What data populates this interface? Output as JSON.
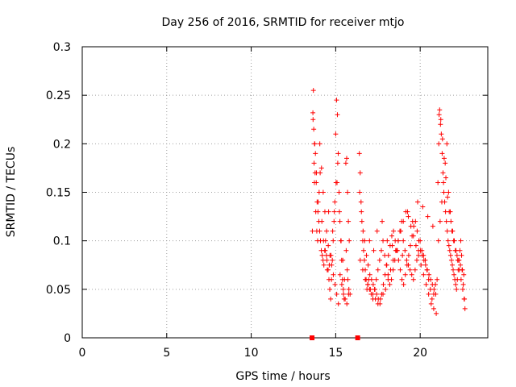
{
  "chart_data": {
    "type": "scatter",
    "title": "Day 256 of 2016, SRMTID for receiver mtjo",
    "xlabel": "GPS time / hours",
    "ylabel": "SRMTID / TECUs",
    "xlim": [
      0,
      24
    ],
    "ylim": [
      0,
      0.3
    ],
    "xticks": [
      0,
      5,
      10,
      15,
      20
    ],
    "xtick_labels": [
      "0",
      "5",
      "10",
      "15",
      "20"
    ],
    "yticks": [
      0,
      0.05,
      0.1,
      0.15,
      0.2,
      0.25,
      0.3
    ],
    "ytick_labels": [
      "0",
      "0.05",
      "0.1",
      "0.15",
      "0.2",
      "0.25",
      "0.3"
    ],
    "grid": true,
    "marker": "+",
    "color": "#ff0000",
    "zero_markers": [
      13.6,
      16.3
    ],
    "series": [
      {
        "name": "SRMTID",
        "x": [
          13.65,
          13.7,
          13.72,
          13.75,
          13.78,
          13.8,
          13.85,
          13.9,
          13.95,
          14.0,
          14.05,
          14.1,
          14.15,
          14.2,
          14.25,
          14.3,
          14.35,
          14.4,
          14.45,
          14.5,
          13.62,
          13.68,
          13.74,
          13.82,
          13.88,
          13.93,
          14.02,
          14.08,
          14.18,
          14.28,
          14.38,
          14.48,
          14.55,
          14.6,
          14.65,
          14.7,
          14.75,
          14.8,
          14.85,
          14.9,
          14.95,
          15.0,
          15.05,
          15.1,
          15.15,
          15.2,
          15.25,
          15.3,
          15.35,
          15.4,
          15.45,
          15.5,
          14.62,
          14.72,
          14.82,
          14.92,
          15.02,
          15.12,
          15.22,
          15.32,
          15.42,
          15.52,
          15.6,
          15.65,
          15.7,
          15.75,
          15.8,
          15.62,
          15.68,
          15.72,
          15.78,
          15.85,
          13.66,
          13.76,
          13.86,
          13.96,
          14.06,
          14.16,
          14.26,
          14.36,
          14.46,
          14.56,
          14.66,
          14.76,
          14.86,
          14.96,
          15.06,
          15.16,
          15.26,
          15.36,
          15.46,
          15.56,
          15.66,
          15.76,
          14.58,
          15.08,
          16.4,
          16.45,
          16.5,
          16.55,
          16.6,
          16.65,
          16.7,
          16.75,
          16.8,
          16.85,
          16.9,
          16.95,
          17.0,
          17.1,
          17.2,
          17.3,
          17.4,
          17.5,
          17.6,
          17.7,
          17.8,
          17.9,
          18.0,
          18.1,
          18.2,
          18.3,
          18.4,
          18.5,
          18.6,
          18.7,
          18.8,
          18.9,
          19.0,
          19.1,
          19.2,
          19.3,
          19.4,
          19.5,
          19.6,
          19.7,
          19.8,
          19.9,
          20.0,
          20.1,
          20.2,
          20.3,
          20.4,
          20.5,
          20.6,
          20.7,
          20.8,
          20.9,
          21.0,
          16.42,
          16.52,
          16.62,
          16.72,
          16.82,
          16.92,
          17.02,
          17.12,
          17.22,
          17.32,
          17.42,
          17.52,
          17.62,
          17.72,
          17.82,
          17.92,
          18.02,
          18.12,
          18.22,
          18.32,
          18.42,
          18.52,
          18.62,
          18.72,
          18.82,
          18.92,
          19.02,
          19.12,
          19.22,
          19.32,
          19.42,
          19.52,
          19.62,
          19.72,
          19.82,
          19.92,
          20.02,
          20.12,
          20.22,
          20.32,
          20.42,
          20.52,
          20.62,
          20.72,
          20.82,
          20.92,
          16.45,
          16.6,
          16.75,
          16.9,
          17.05,
          17.2,
          17.35,
          17.5,
          17.65,
          17.8,
          17.95,
          18.1,
          18.25,
          18.4,
          18.55,
          18.7,
          18.85,
          19.0,
          19.15,
          19.3,
          19.45,
          19.6,
          19.75,
          19.9,
          20.05,
          20.2,
          20.35,
          20.5,
          20.65,
          20.8,
          20.95,
          17.0,
          17.25,
          17.45,
          17.75,
          18.05,
          18.35,
          18.65,
          18.95,
          19.25,
          19.55,
          19.85,
          20.15,
          20.45,
          20.75,
          21.05,
          21.1,
          21.15,
          21.2,
          21.25,
          21.3,
          21.35,
          21.4,
          21.45,
          21.5,
          21.55,
          21.6,
          21.65,
          21.7,
          21.75,
          21.8,
          21.85,
          21.9,
          21.95,
          22.0,
          22.05,
          22.1,
          22.15,
          22.2,
          22.25,
          22.3,
          22.35,
          22.4,
          22.45,
          22.5,
          22.55,
          22.6,
          22.65,
          21.12,
          21.22,
          21.32,
          21.42,
          21.52,
          21.62,
          21.72,
          21.82,
          21.92,
          22.02,
          22.12,
          22.22,
          22.32,
          22.42,
          22.52,
          22.62,
          21.08,
          21.18,
          21.28,
          21.38,
          21.48,
          21.58,
          21.68,
          21.78,
          21.88,
          21.98,
          22.08,
          22.18,
          22.28,
          22.38,
          22.48,
          22.58
        ],
        "y": [
          0.232,
          0.215,
          0.18,
          0.2,
          0.17,
          0.19,
          0.16,
          0.14,
          0.13,
          0.12,
          0.11,
          0.1,
          0.09,
          0.085,
          0.08,
          0.075,
          0.09,
          0.1,
          0.085,
          0.07,
          0.11,
          0.255,
          0.16,
          0.13,
          0.11,
          0.1,
          0.15,
          0.17,
          0.12,
          0.1,
          0.09,
          0.08,
          0.07,
          0.06,
          0.05,
          0.04,
          0.06,
          0.08,
          0.1,
          0.12,
          0.14,
          0.21,
          0.245,
          0.23,
          0.19,
          0.15,
          0.12,
          0.1,
          0.08,
          0.06,
          0.05,
          0.04,
          0.075,
          0.085,
          0.11,
          0.13,
          0.16,
          0.18,
          0.13,
          0.1,
          0.08,
          0.06,
          0.18,
          0.185,
          0.15,
          0.12,
          0.1,
          0.09,
          0.07,
          0.06,
          0.05,
          0.045,
          0.225,
          0.2,
          0.17,
          0.14,
          0.2,
          0.175,
          0.15,
          0.13,
          0.11,
          0.095,
          0.085,
          0.075,
          0.065,
          0.055,
          0.045,
          0.035,
          0.065,
          0.055,
          0.045,
          0.04,
          0.035,
          0.045,
          0.13,
          0.16,
          0.19,
          0.17,
          0.14,
          0.12,
          0.1,
          0.09,
          0.08,
          0.07,
          0.06,
          0.05,
          0.055,
          0.06,
          0.05,
          0.045,
          0.04,
          0.05,
          0.06,
          0.07,
          0.08,
          0.09,
          0.1,
          0.085,
          0.075,
          0.065,
          0.055,
          0.06,
          0.07,
          0.08,
          0.09,
          0.1,
          0.11,
          0.12,
          0.1,
          0.09,
          0.08,
          0.075,
          0.07,
          0.065,
          0.06,
          0.07,
          0.08,
          0.09,
          0.1,
          0.09,
          0.085,
          0.08,
          0.07,
          0.06,
          0.05,
          0.04,
          0.045,
          0.055,
          0.06,
          0.15,
          0.13,
          0.11,
          0.1,
          0.085,
          0.075,
          0.065,
          0.06,
          0.055,
          0.05,
          0.045,
          0.04,
          0.035,
          0.045,
          0.055,
          0.065,
          0.075,
          0.085,
          0.095,
          0.105,
          0.11,
          0.1,
          0.09,
          0.08,
          0.07,
          0.06,
          0.055,
          0.065,
          0.075,
          0.085,
          0.095,
          0.105,
          0.115,
          0.12,
          0.11,
          0.1,
          0.09,
          0.085,
          0.08,
          0.075,
          0.07,
          0.065,
          0.06,
          0.055,
          0.05,
          0.045,
          0.08,
          0.07,
          0.06,
          0.055,
          0.05,
          0.045,
          0.04,
          0.035,
          0.04,
          0.045,
          0.05,
          0.06,
          0.07,
          0.08,
          0.09,
          0.1,
          0.11,
          0.12,
          0.13,
          0.125,
          0.115,
          0.105,
          0.095,
          0.085,
          0.075,
          0.065,
          0.055,
          0.045,
          0.035,
          0.03,
          0.025,
          0.1,
          0.09,
          0.11,
          0.12,
          0.1,
          0.095,
          0.09,
          0.085,
          0.13,
          0.12,
          0.14,
          0.135,
          0.125,
          0.115,
          0.16,
          0.2,
          0.235,
          0.22,
          0.21,
          0.19,
          0.17,
          0.15,
          0.14,
          0.13,
          0.12,
          0.11,
          0.1,
          0.095,
          0.09,
          0.085,
          0.08,
          0.075,
          0.07,
          0.065,
          0.06,
          0.055,
          0.05,
          0.06,
          0.07,
          0.08,
          0.09,
          0.1,
          0.085,
          0.07,
          0.055,
          0.04,
          0.03,
          0.23,
          0.225,
          0.205,
          0.185,
          0.165,
          0.145,
          0.13,
          0.12,
          0.11,
          0.1,
          0.09,
          0.08,
          0.07,
          0.06,
          0.05,
          0.04,
          0.1,
          0.12,
          0.14,
          0.16,
          0.18,
          0.2,
          0.15,
          0.13,
          0.11,
          0.1,
          0.09,
          0.085,
          0.08,
          0.075,
          0.07,
          0.065
        ]
      }
    ]
  }
}
